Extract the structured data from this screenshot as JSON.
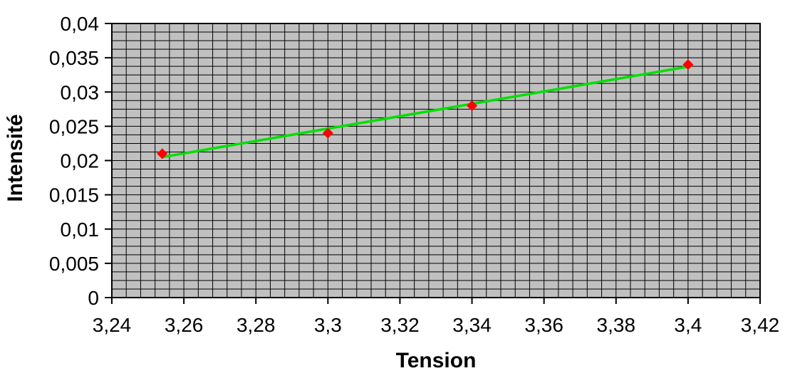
{
  "chart_data": {
    "type": "scatter",
    "title": "",
    "xlabel": "Tension",
    "ylabel": "Intensité",
    "points": [
      {
        "x": 3.254,
        "y": 0.021
      },
      {
        "x": 3.3,
        "y": 0.024
      },
      {
        "x": 3.34,
        "y": 0.028
      },
      {
        "x": 3.4,
        "y": 0.034
      }
    ],
    "trendline": {
      "start": {
        "x": 3.254,
        "y": 0.0205
      },
      "end": {
        "x": 3.4,
        "y": 0.0337
      },
      "color": "#00e000"
    },
    "x_axis": {
      "min": 3.24,
      "max": 3.42,
      "major": 0.02,
      "minor": 0.004,
      "tick_labels": [
        "3,24",
        "3,26",
        "3,28",
        "3,3",
        "3,32",
        "3,34",
        "3,36",
        "3,38",
        "3,4",
        "3,42"
      ]
    },
    "y_axis": {
      "min": 0,
      "max": 0.04,
      "major": 0.005,
      "minor": 0.00125,
      "tick_labels": [
        "0",
        "0,005",
        "0,01",
        "0,015",
        "0,02",
        "0,025",
        "0,03",
        "0,035",
        "0,04"
      ]
    },
    "grid": "on",
    "legend": "none",
    "colors": {
      "plot_background": "#c0c0c0",
      "gridline": "#000000",
      "marker": "#ff0000",
      "trendline": "#00e000",
      "axis": "#000000",
      "text": "#000000",
      "page_background": "#ffffff"
    },
    "marker_shape": "diamond"
  }
}
